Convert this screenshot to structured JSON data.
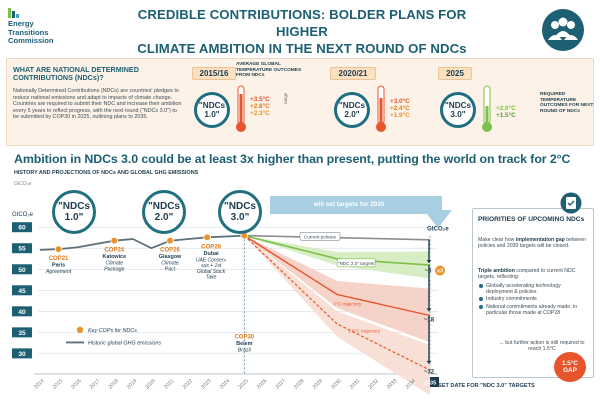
{
  "logo": {
    "line1": "Energy",
    "line2": "Transitions",
    "line3": "Commission"
  },
  "title": {
    "line1": "CREDIBLE CONTRIBUTIONS: BOLDER PLANS FOR HIGHER",
    "line2": "CLIMATE AMBITION IN THE NEXT ROUND OF NDCs"
  },
  "info": {
    "heading_line1": "WHAT ARE NATIONAL DETERMINED",
    "heading_line2": "CONTRIBUTIONS (NDCs)?",
    "body": "Nationally Determined Contributions (NDCs) are countries' pledges to reduce national emissions and adapt to impacts of climate change. Countries are required to submit their NDC and increase their ambition every 5 years to reflect progress, with the next round (\"NDCs 3.0\") to be submitted by COP30 in 2025, outlining plans to 2035.",
    "avg_label": "AVERAGE GLOBAL TEMPERATURE OUTCOMES FROM NDCs",
    "range_label": "range",
    "required_label": "REQUIRED TEMPERATURE OUTCOMES FOR NEXT ROUND OF NDCs",
    "rounds": [
      {
        "year": "2015/16",
        "ndc": "\"NDCs 1.0\"",
        "high": "+3.5°C",
        "mid": "+2.8°C",
        "low": "+2.3°C"
      },
      {
        "year": "2020/21",
        "ndc": "\"NDCs 2.0\"",
        "high": "+3.0°C",
        "mid": "+2.4°C",
        "low": "+1.9°C"
      },
      {
        "year": "2025",
        "ndc": "\"NDCs 3.0\"",
        "high": "+2.0°C",
        "mid": "+1.5°C"
      }
    ]
  },
  "headline": "Ambition in NDCs 3.0 could be at least 3x higher than present, putting the world on track for 2°C",
  "subheading": "HISTORY AND PROJECTIONS OF NDCs AND GLOBAL GHG EMISSIONS",
  "chart_data": {
    "type": "line",
    "ylabel": "GtCO₂e",
    "ylabel_top": "GtCO₂e",
    "ylim": [
      25,
      62
    ],
    "yticks": [
      "60",
      "55",
      "50",
      "45",
      "40",
      "35",
      "30"
    ],
    "x": [
      "2014",
      "2015",
      "2016",
      "2017",
      "2018",
      "2019",
      "2020",
      "2021",
      "2022",
      "2023",
      "2024",
      "2025",
      "2026",
      "2027",
      "2028",
      "2029",
      "2030",
      "2031",
      "2032",
      "2033",
      "2034",
      "2035"
    ],
    "ndc_markers": [
      "\"NDCs 1.0\"",
      "\"NDCs 2.0\"",
      "\"NDCs 3.0\""
    ],
    "banner": "will set targets for 2035",
    "series": [
      {
        "name": "Historic global GHG emissions",
        "x": [
          2014,
          2015,
          2016,
          2017,
          2018,
          2019,
          2020,
          2021,
          2022,
          2023,
          2024,
          2025
        ],
        "values": [
          54.6,
          54.8,
          55.2,
          56.0,
          56.8,
          57.2,
          55.0,
          56.8,
          57.2,
          57.6,
          57.8,
          58.0
        ]
      },
      {
        "name": "Current policies",
        "x": [
          2025,
          2035
        ],
        "values": [
          58.0,
          57.0
        ]
      },
      {
        "name": "\"NDC 2.0\" targets",
        "x": [
          2025,
          2030,
          2035
        ],
        "values": [
          58.0,
          52.5,
          51.0
        ]
      },
      {
        "name": "2°C trajectory",
        "x": [
          2025,
          2030,
          2035
        ],
        "values": [
          58.0,
          44.0,
          39.0
        ]
      },
      {
        "name": "1.5°C trajectory",
        "x": [
          2025,
          2030,
          2035
        ],
        "values": [
          58.0,
          37.0,
          26.0
        ]
      }
    ],
    "cops": [
      {
        "name": "COP21",
        "city": "Paris",
        "note": "Agreement",
        "year": 2015,
        "value": 54.8
      },
      {
        "name": "COP24",
        "city": "Katowice",
        "note": "Climate Package",
        "year": 2018,
        "value": 56.8
      },
      {
        "name": "COP26",
        "city": "Glasgow",
        "note": "Climate Pact",
        "year": 2021,
        "value": 56.8
      },
      {
        "name": "COP28",
        "city": "Dubai",
        "note": "UAE Consensus + 1st Global Stock Take",
        "year": 2023,
        "value": 57.6
      },
      {
        "name": "COP30",
        "city": "Belem",
        "note": "Brazil",
        "year": 2025,
        "value": 58.0
      }
    ],
    "legend": {
      "cop": "Key COPs for NDCs",
      "historic": "Historic global GHG emissions"
    },
    "annotations": {
      "gap_current": "~6",
      "multiplier": "x3",
      "gap_2c": "~18",
      "gap_15c": "~32",
      "end_year": "2035",
      "set_date": "SET DATE FOR \"NDC 3.0\" TARGETS"
    }
  },
  "sidebar": {
    "heading": "PRIORITIES OF UPCOMING NDCs",
    "p1_pre": "Make clear how ",
    "p1_bold": "implementation gap",
    "p1_post": " between policies and 2030 targets will be closed.",
    "p2_bold": "Triple ambition",
    "p2_post": " compared to current NDC targets, reflecting:",
    "bullets": [
      "Globally accelerating technology deployment & policies",
      "Industry commitments",
      "National commitments already made, in particular those made at COP28"
    ],
    "p3": "... but further action is still required to reach 1.5°C",
    "gap_badge_line1": "1.5°C",
    "gap_badge_line2": "GAP"
  },
  "colors": {
    "teal": "#1d5f73",
    "orange": "#e8942c",
    "red": "#e8542c",
    "green": "#7cbf4a"
  }
}
